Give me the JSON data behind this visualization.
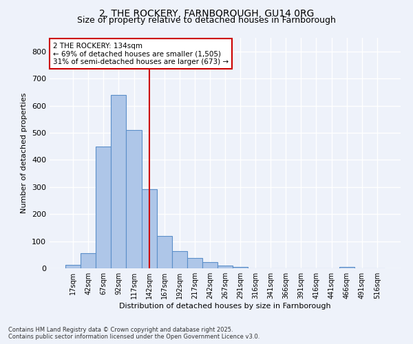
{
  "title1": "2, THE ROCKERY, FARNBOROUGH, GU14 0RG",
  "title2": "Size of property relative to detached houses in Farnborough",
  "xlabel": "Distribution of detached houses by size in Farnborough",
  "ylabel": "Number of detached properties",
  "bar_labels": [
    "17sqm",
    "42sqm",
    "67sqm",
    "92sqm",
    "117sqm",
    "142sqm",
    "167sqm",
    "192sqm",
    "217sqm",
    "242sqm",
    "267sqm",
    "291sqm",
    "316sqm",
    "341sqm",
    "366sqm",
    "391sqm",
    "416sqm",
    "441sqm",
    "466sqm",
    "491sqm",
    "516sqm"
  ],
  "bar_values": [
    12,
    57,
    450,
    640,
    510,
    291,
    120,
    63,
    38,
    22,
    10,
    4,
    1,
    0,
    0,
    0,
    0,
    0,
    5,
    0,
    0
  ],
  "bar_color": "#aec6e8",
  "bar_edge_color": "#5b8fc9",
  "vline_x": 5,
  "vline_color": "#cc0000",
  "annotation_title": "2 THE ROCKERY: 134sqm",
  "annotation_line1": "← 69% of detached houses are smaller (1,505)",
  "annotation_line2": "31% of semi-detached houses are larger (673) →",
  "annotation_box_color": "#ffffff",
  "annotation_box_edge": "#cc0000",
  "ylim": [
    0,
    850
  ],
  "yticks": [
    0,
    100,
    200,
    300,
    400,
    500,
    600,
    700,
    800
  ],
  "background_color": "#eef2fa",
  "grid_color": "#ffffff",
  "footnote1": "Contains HM Land Registry data © Crown copyright and database right 2025.",
  "footnote2": "Contains public sector information licensed under the Open Government Licence v3.0."
}
